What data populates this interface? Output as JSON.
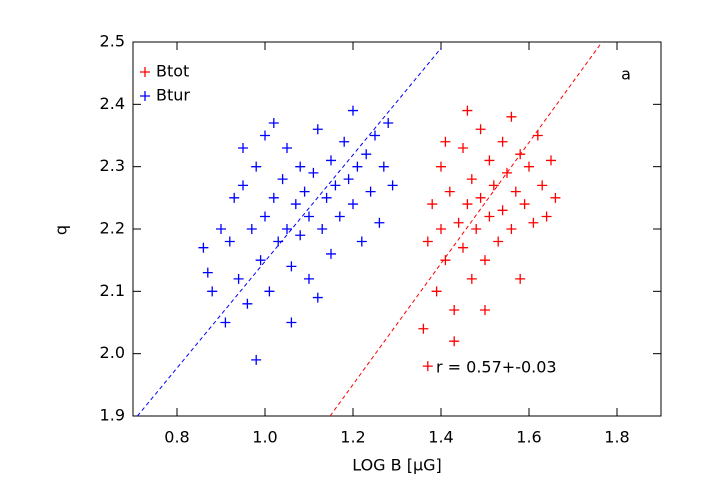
{
  "chart_data": {
    "type": "scatter",
    "x_label": "LOG B [μG]",
    "y_label": "q",
    "annotations": [
      "a",
      "r = 0.57+-0.03"
    ],
    "xlim": [
      0.7,
      1.9
    ],
    "ylim": [
      1.9,
      2.5
    ],
    "xticks": [
      0.8,
      {
        "value": 1.0,
        "label": "1.0"
      },
      1.2,
      1.4,
      1.6,
      1.8
    ],
    "yticks": [
      1.9,
      {
        "value": 2.0,
        "label": "2.0"
      },
      2.1,
      2.2,
      2.3,
      2.4,
      2.5
    ],
    "legend": "upper left",
    "series": [
      {
        "name": "Btot",
        "color": "#ff0000",
        "x": [
          1.36,
          1.37,
          1.38,
          1.39,
          1.4,
          1.4,
          1.41,
          1.42,
          1.43,
          1.44,
          1.45,
          1.45,
          1.46,
          1.47,
          1.47,
          1.48,
          1.49,
          1.49,
          1.5,
          1.51,
          1.51,
          1.52,
          1.53,
          1.54,
          1.54,
          1.55,
          1.56,
          1.56,
          1.57,
          1.58,
          1.59,
          1.6,
          1.61,
          1.62,
          1.63,
          1.64,
          1.65,
          1.66,
          1.43,
          1.5,
          1.37,
          1.46,
          1.58,
          1.41
        ],
        "values": [
          2.04,
          2.18,
          2.24,
          2.1,
          2.2,
          2.3,
          2.15,
          2.26,
          2.07,
          2.21,
          2.33,
          2.17,
          2.24,
          2.12,
          2.28,
          2.2,
          2.36,
          2.25,
          2.15,
          2.22,
          2.31,
          2.27,
          2.18,
          2.34,
          2.23,
          2.29,
          2.2,
          2.38,
          2.26,
          2.32,
          2.24,
          2.3,
          2.21,
          2.35,
          2.27,
          2.22,
          2.31,
          2.25,
          2.02,
          2.07,
          1.98,
          2.39,
          2.12,
          2.34
        ],
        "fit_x": [
          1.148,
          1.766
        ],
        "fit_y": [
          1.9,
          2.5
        ]
      },
      {
        "name": "Btur",
        "color": "#0000ff",
        "x": [
          0.86,
          0.87,
          0.88,
          0.9,
          0.91,
          0.92,
          0.93,
          0.94,
          0.95,
          0.96,
          0.97,
          0.98,
          0.98,
          0.99,
          1.0,
          1.0,
          1.01,
          1.02,
          1.03,
          1.04,
          1.05,
          1.05,
          1.06,
          1.07,
          1.08,
          1.08,
          1.09,
          1.1,
          1.1,
          1.11,
          1.12,
          1.13,
          1.14,
          1.15,
          1.15,
          1.16,
          1.17,
          1.18,
          1.19,
          1.2,
          1.2,
          1.21,
          1.22,
          1.23,
          1.24,
          1.25,
          1.26,
          1.27,
          1.28,
          1.29,
          1.06,
          1.12,
          0.95,
          1.02
        ],
        "values": [
          2.17,
          2.13,
          2.1,
          2.2,
          2.05,
          2.18,
          2.25,
          2.12,
          2.27,
          2.08,
          2.2,
          1.99,
          2.3,
          2.15,
          2.22,
          2.35,
          2.1,
          2.25,
          2.18,
          2.28,
          2.2,
          2.33,
          2.14,
          2.24,
          2.3,
          2.19,
          2.26,
          2.22,
          2.12,
          2.29,
          2.36,
          2.2,
          2.25,
          2.31,
          2.16,
          2.27,
          2.22,
          2.34,
          2.28,
          2.24,
          2.39,
          2.3,
          2.18,
          2.32,
          2.26,
          2.35,
          2.21,
          2.3,
          2.37,
          2.27,
          2.05,
          2.09,
          2.33,
          2.37
        ],
        "fit_x": [
          0.71,
          1.4
        ],
        "fit_y": [
          1.9,
          2.49
        ]
      }
    ]
  }
}
